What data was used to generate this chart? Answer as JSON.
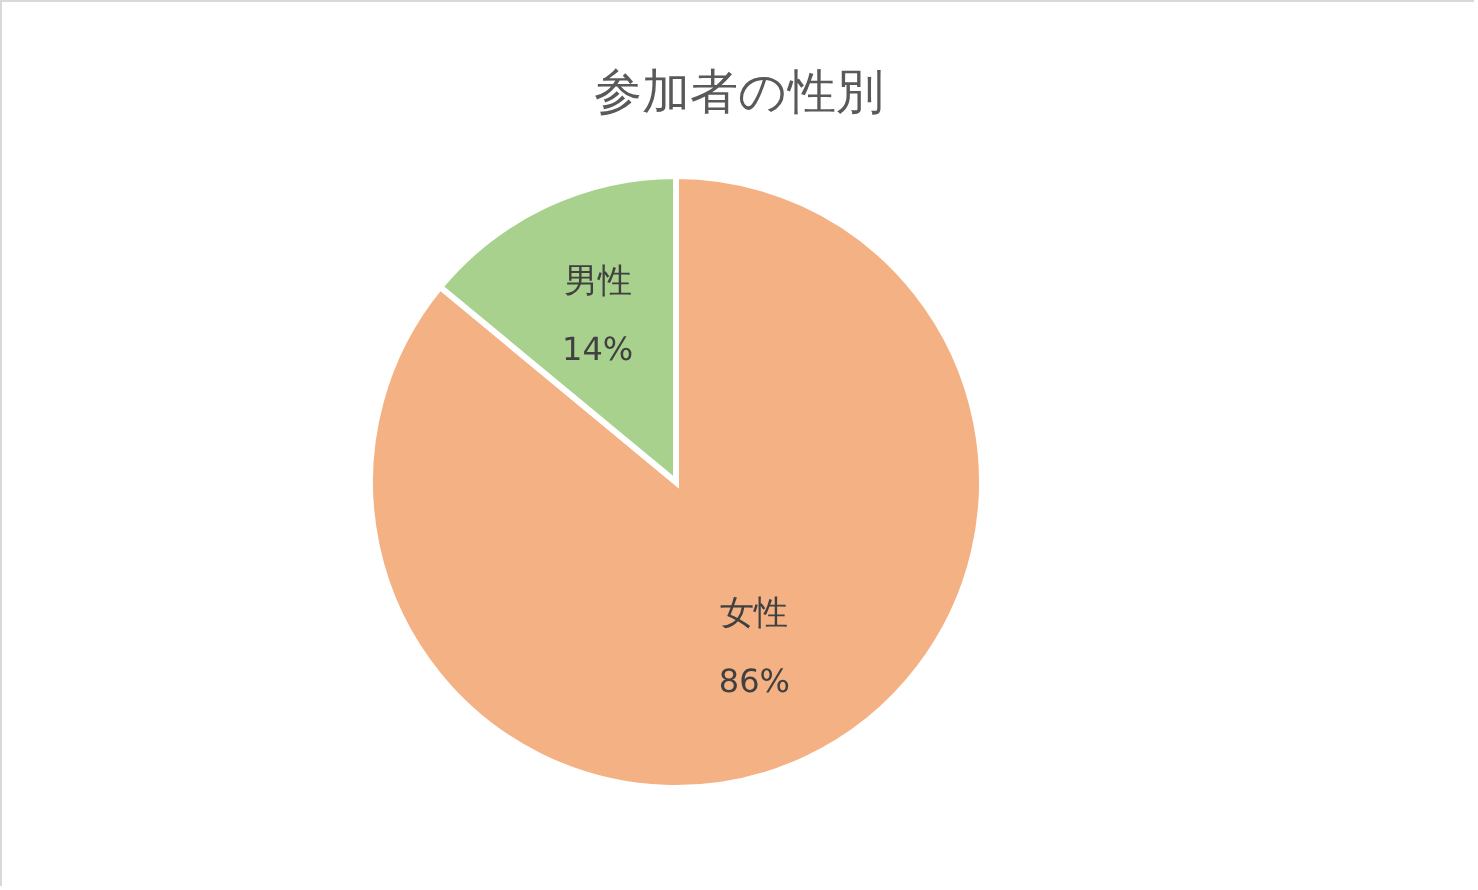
{
  "chart_data": {
    "type": "pie",
    "title": "参加者の性別",
    "categories": [
      "女性",
      "男性"
    ],
    "values": [
      86,
      14
    ],
    "colors": [
      "#f4b183",
      "#a9d18e"
    ],
    "value_labels": [
      "86%",
      "14%"
    ],
    "legend": false
  }
}
